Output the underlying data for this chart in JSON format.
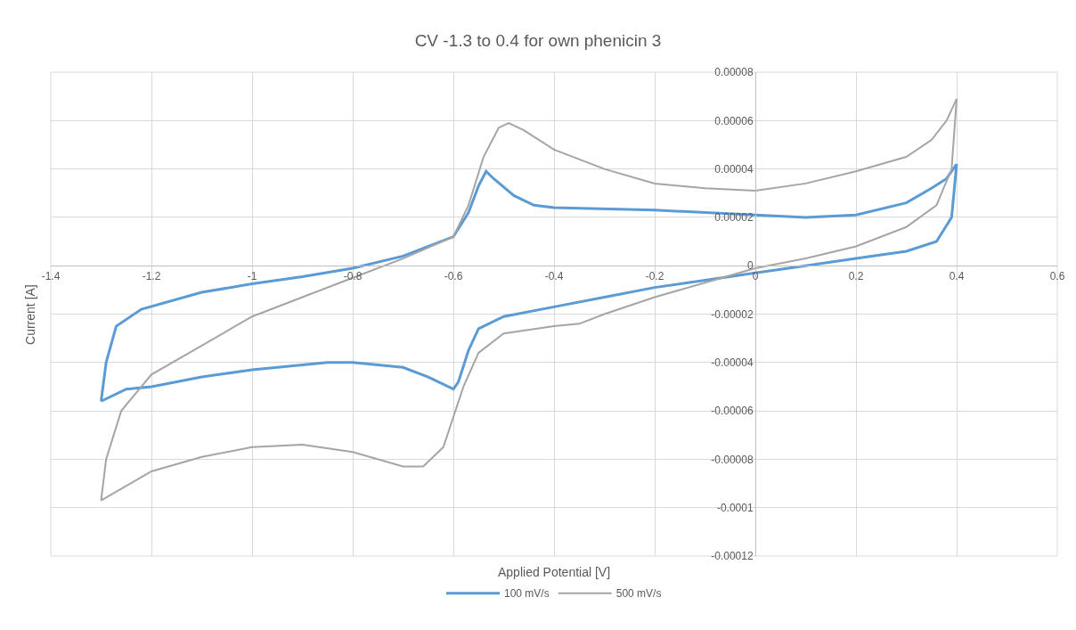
{
  "chart_data": {
    "type": "line",
    "title": "CV -1.3 to 0.4 for own phenicin 3",
    "xlabel": "Applied Potential [V]",
    "ylabel": "Current [A]",
    "xlim": [
      -1.4,
      0.6
    ],
    "xticks": [
      -1.4,
      -1.2,
      -1,
      -0.8,
      -0.6,
      -0.4,
      -0.2,
      0,
      0.2,
      0.4,
      0.6
    ],
    "ylim": [
      -0.00012,
      8e-05
    ],
    "yticks": [
      {
        "value": -0.00012,
        "label": "-0.00012"
      },
      {
        "value": -0.0001,
        "label": "-0.0001"
      },
      {
        "value": -8e-05,
        "label": "-0.00008"
      },
      {
        "value": -6e-05,
        "label": "-0.00006"
      },
      {
        "value": -4e-05,
        "label": "-0.00004"
      },
      {
        "value": -2e-05,
        "label": "-0.00002"
      },
      0,
      {
        "value": 2e-05,
        "label": "0.00002"
      },
      {
        "value": 4e-05,
        "label": "0.00004"
      },
      {
        "value": 6e-05,
        "label": "0.00006"
      },
      {
        "value": 8e-05,
        "label": "0.00008"
      }
    ],
    "grid": true,
    "legend": "bottom",
    "marker": "none",
    "line_style": "solid",
    "series": [
      {
        "name": "100 mV/s",
        "color": "#5b9bd5",
        "x": [
          -1.3,
          -1.29,
          -1.27,
          -1.22,
          -1.1,
          -1.0,
          -0.9,
          -0.8,
          -0.7,
          -0.6,
          -0.57,
          -0.55,
          -0.535,
          -0.52,
          -0.48,
          -0.44,
          -0.4,
          -0.2,
          0,
          0.1,
          0.2,
          0.3,
          0.35,
          0.38,
          0.4
        ],
        "values": [
          -5.6e-05,
          -4e-05,
          -2.5e-05,
          -1.8e-05,
          -1.1e-05,
          -7.5e-06,
          -4.5e-06,
          -1e-06,
          4e-06,
          1.2e-05,
          2.2e-05,
          3.3e-05,
          3.9e-05,
          3.6e-05,
          2.9e-05,
          2.5e-05,
          2.4e-05,
          2.3e-05,
          2.1e-05,
          2e-05,
          2.1e-05,
          2.6e-05,
          3.2e-05,
          3.6e-05,
          4.2e-05
        ]
      },
      {
        "color": "#5b9bd5",
        "x": [
          0.4,
          0.39,
          0.36,
          0.3,
          0.2,
          0.1,
          0,
          -0.1,
          -0.2,
          -0.3,
          -0.4,
          -0.5,
          -0.55,
          -0.57,
          -0.59,
          -0.6,
          -0.65,
          -0.7,
          -0.8,
          -0.85,
          -0.9,
          -1.0,
          -1.1,
          -1.2,
          -1.25,
          -1.3
        ],
        "values": [
          4.2e-05,
          2e-05,
          1e-05,
          6e-06,
          3e-06,
          0,
          -3e-06,
          -6e-06,
          -9e-06,
          -1.3e-05,
          -1.7e-05,
          -2.1e-05,
          -2.6e-05,
          -3.5e-05,
          -4.8e-05,
          -5.1e-05,
          -4.6e-05,
          -4.2e-05,
          -4e-05,
          -4e-05,
          -4.1e-05,
          -4.3e-05,
          -4.6e-05,
          -5e-05,
          -5.1e-05,
          -5.6e-05
        ]
      },
      {
        "name": "500 mV/s",
        "color": "#a5a5a5",
        "x": [
          -1.3,
          -1.29,
          -1.26,
          -1.2,
          -1.1,
          -1.0,
          -0.9,
          -0.8,
          -0.7,
          -0.6,
          -0.57,
          -0.54,
          -0.51,
          -0.49,
          -0.46,
          -0.4,
          -0.3,
          -0.2,
          -0.1,
          0,
          0.1,
          0.2,
          0.3,
          0.35,
          0.38,
          0.4
        ],
        "values": [
          -9.7e-05,
          -8e-05,
          -6e-05,
          -4.5e-05,
          -3.3e-05,
          -2.1e-05,
          -1.3e-05,
          -5e-06,
          3e-06,
          1.2e-05,
          2.5e-05,
          4.5e-05,
          5.7e-05,
          5.9e-05,
          5.6e-05,
          4.8e-05,
          4e-05,
          3.4e-05,
          3.2e-05,
          3.1e-05,
          3.4e-05,
          3.9e-05,
          4.5e-05,
          5.2e-05,
          6e-05,
          6.9e-05
        ]
      },
      {
        "color": "#a5a5a5",
        "x": [
          0.4,
          0.39,
          0.36,
          0.3,
          0.2,
          0.1,
          0,
          -0.1,
          -0.2,
          -0.3,
          -0.35,
          -0.4,
          -0.5,
          -0.55,
          -0.58,
          -0.62,
          -0.66,
          -0.7,
          -0.8,
          -0.9,
          -1.0,
          -1.1,
          -1.2,
          -1.3
        ],
        "values": [
          6.9e-05,
          4e-05,
          2.5e-05,
          1.6e-05,
          8e-06,
          3e-06,
          -1e-06,
          -7e-06,
          -1.3e-05,
          -2e-05,
          -2.4e-05,
          -2.5e-05,
          -2.8e-05,
          -3.6e-05,
          -5e-05,
          -7.5e-05,
          -8.3e-05,
          -8.3e-05,
          -7.7e-05,
          -7.4e-05,
          -7.5e-05,
          -7.9e-05,
          -8.5e-05,
          -9.7e-05
        ]
      }
    ]
  }
}
